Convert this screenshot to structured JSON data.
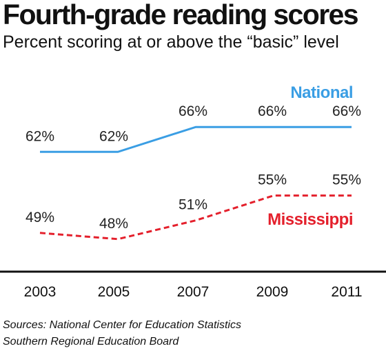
{
  "header": {
    "title": "Fourth-grade reading scores",
    "subtitle": "Percent scoring at or above the “basic” level"
  },
  "footer": {
    "sources": [
      "Sources: National Center for Education Statistics",
      "Southern Regional Education Board"
    ]
  },
  "chart_data": {
    "type": "line",
    "title": "Fourth-grade reading scores",
    "subtitle": "Percent scoring at or above the “basic” level",
    "xlabel": "",
    "ylabel": "",
    "categories": [
      "2003",
      "2005",
      "2007",
      "2009",
      "2011"
    ],
    "value_suffix": "%",
    "ylim": [
      44,
      70
    ],
    "grid": false,
    "series": [
      {
        "name": "National",
        "values": [
          62,
          62,
          66,
          66,
          66
        ],
        "color": "#3a9ee4",
        "dash": "solid"
      },
      {
        "name": "Mississippi",
        "values": [
          49,
          48,
          51,
          55,
          55
        ],
        "color": "#e4202c",
        "dash": "dashed"
      }
    ]
  }
}
